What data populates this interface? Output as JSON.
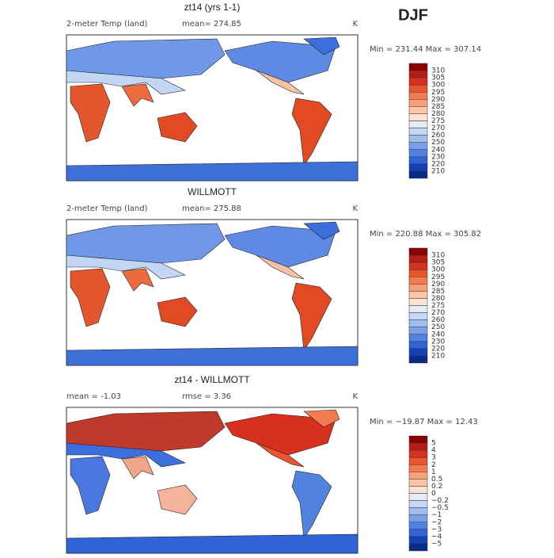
{
  "header": {
    "season": "DJF"
  },
  "panels": [
    {
      "title": "zt14 (yrs 1-1)",
      "left_label": "2-meter Temp (land)",
      "stat": "mean= 274.85",
      "units": "K",
      "range": "Min = 231.44 Max = 307.14",
      "colorbar": [
        "310",
        "305",
        "300",
        "295",
        "290",
        "285",
        "280",
        "275",
        "270",
        "260",
        "250",
        "240",
        "230",
        "220",
        "210"
      ]
    },
    {
      "title": "WILLMOTT",
      "left_label": "2-meter Temp (land)",
      "stat": "mean= 275.88",
      "units": "K",
      "range": "Min = 220.88 Max = 305.82",
      "colorbar": [
        "310",
        "305",
        "300",
        "295",
        "290",
        "285",
        "280",
        "275",
        "270",
        "260",
        "250",
        "240",
        "230",
        "220",
        "210"
      ]
    },
    {
      "title": "zt14 - WILLMOTT",
      "left_label": "mean =  -1.03",
      "stat": "rmse =   3.36",
      "units": "K",
      "range": "Min = −19.87 Max =   12.43",
      "colorbar": [
        "5",
        "4",
        "3",
        "2",
        "1",
        "0.5",
        "0.2",
        "0",
        "−0.2",
        "−0.5",
        "−1",
        "−2",
        "−3",
        "−4",
        "−5"
      ]
    }
  ]
}
